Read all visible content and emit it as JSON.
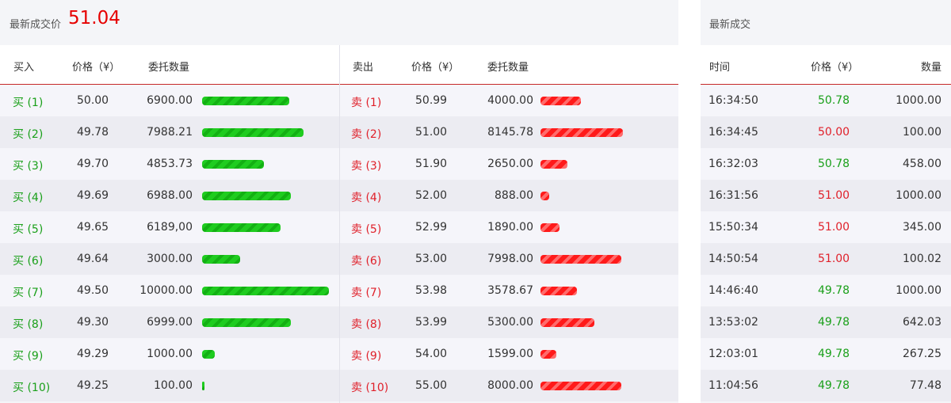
{
  "orderbook": {
    "last_price_label": "最新成交价",
    "last_price": "51.04",
    "buy_headers": {
      "side": "买入",
      "price": "价格（¥）",
      "amount": "委托数量"
    },
    "sell_headers": {
      "side": "卖出",
      "price": "价格（¥）",
      "amount": "委托数量"
    },
    "max_amount": 10000,
    "bids": [
      {
        "label": "买 (1)",
        "price": "50.00",
        "amount": "6900.00",
        "qty": 6900
      },
      {
        "label": "买 (2)",
        "price": "49.78",
        "amount": "7988.21",
        "qty": 7988.21
      },
      {
        "label": "买 (3)",
        "price": "49.70",
        "amount": "4853.73",
        "qty": 4853.73
      },
      {
        "label": "买 (4)",
        "price": "49.69",
        "amount": "6988.00",
        "qty": 6988
      },
      {
        "label": "买 (5)",
        "price": "49.65",
        "amount": "6189,00",
        "qty": 6189
      },
      {
        "label": "买 (6)",
        "price": "49.64",
        "amount": "3000.00",
        "qty": 3000
      },
      {
        "label": "买 (7)",
        "price": "49.50",
        "amount": "10000.00",
        "qty": 10000
      },
      {
        "label": "买 (8)",
        "price": "49.30",
        "amount": "6999.00",
        "qty": 6999
      },
      {
        "label": "买 (9)",
        "price": "49.29",
        "amount": "1000.00",
        "qty": 1000
      },
      {
        "label": "买 (10)",
        "price": "49.25",
        "amount": "100.00",
        "qty": 100
      }
    ],
    "asks": [
      {
        "label": "卖 (1)",
        "price": "50.99",
        "amount": "4000.00",
        "qty": 4000
      },
      {
        "label": "卖 (2)",
        "price": "51.00",
        "amount": "8145.78",
        "qty": 8145.78
      },
      {
        "label": "卖 (3)",
        "price": "51.90",
        "amount": "2650.00",
        "qty": 2650
      },
      {
        "label": "卖 (4)",
        "price": "52.00",
        "amount": "888.00",
        "qty": 888
      },
      {
        "label": "卖 (5)",
        "price": "52.99",
        "amount": "1890.00",
        "qty": 1890
      },
      {
        "label": "卖 (6)",
        "price": "53.00",
        "amount": "7998.00",
        "qty": 7998
      },
      {
        "label": "卖 (7)",
        "price": "53.98",
        "amount": "3578.67",
        "qty": 3578.67
      },
      {
        "label": "卖 (8)",
        "price": "53.99",
        "amount": "5300.00",
        "qty": 5300
      },
      {
        "label": "卖 (9)",
        "price": "54.00",
        "amount": "1599.00",
        "qty": 1599
      },
      {
        "label": "卖 (10)",
        "price": "55.00",
        "amount": "8000.00",
        "qty": 8000
      }
    ]
  },
  "trades": {
    "title": "最新成交",
    "headers": {
      "time": "时间",
      "price": "价格（¥）",
      "qty": "数量"
    },
    "rows": [
      {
        "time": "16:34:50",
        "price": "50.78",
        "qty": "1000.00",
        "dir": "up"
      },
      {
        "time": "16:34:45",
        "price": "50.00",
        "qty": "100.00",
        "dir": "down"
      },
      {
        "time": "16:32:03",
        "price": "50.78",
        "qty": "458.00",
        "dir": "up"
      },
      {
        "time": "16:31:56",
        "price": "51.00",
        "qty": "1000.00",
        "dir": "down"
      },
      {
        "time": "15:50:34",
        "price": "51.00",
        "qty": "345.00",
        "dir": "down"
      },
      {
        "time": "14:50:54",
        "price": "51.00",
        "qty": "100.02",
        "dir": "down"
      },
      {
        "time": "14:46:40",
        "price": "49.78",
        "qty": "1000.00",
        "dir": "up"
      },
      {
        "time": "13:53:02",
        "price": "49.78",
        "qty": "642.03",
        "dir": "up"
      },
      {
        "time": "12:03:01",
        "price": "49.78",
        "qty": "267.25",
        "dir": "up"
      },
      {
        "time": "11:04:56",
        "price": "49.78",
        "qty": "77.48",
        "dir": "up"
      }
    ]
  },
  "colors": {
    "up": "#1aa01a",
    "down": "#e0202a",
    "last_price": "#e60000",
    "header_rule": "#c62828"
  }
}
